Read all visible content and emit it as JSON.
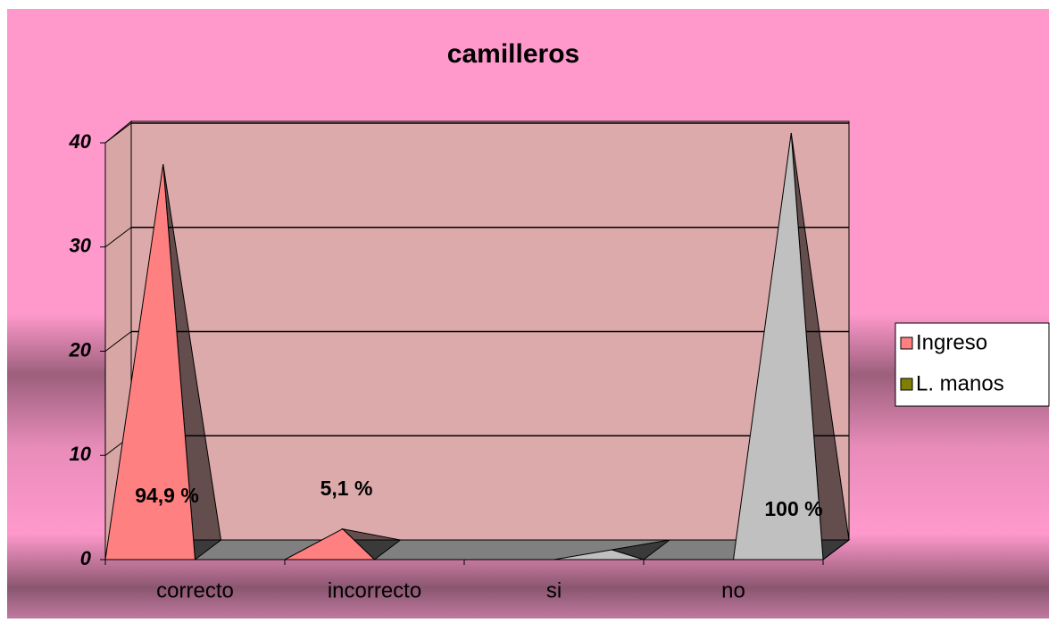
{
  "chart_data": {
    "type": "pyramid3d",
    "title": "camilleros",
    "categories": [
      "correcto",
      "incorrecto",
      "si",
      "no"
    ],
    "series": [
      {
        "name": "Ingreso",
        "color": "#ff8080",
        "pyramid_color": "#ff8080",
        "values": [
          37,
          2,
          null,
          null
        ]
      },
      {
        "name": "L. manos",
        "color": "#808000",
        "pyramid_color": "#c0c0c0",
        "values": [
          null,
          null,
          0,
          40
        ]
      }
    ],
    "annotations": [
      "94,9 %",
      "5,1 %",
      "100 %"
    ],
    "ylim": [
      0,
      40
    ],
    "yticks": [
      0,
      10,
      20,
      30,
      40
    ],
    "grid": true,
    "legend": "right"
  }
}
